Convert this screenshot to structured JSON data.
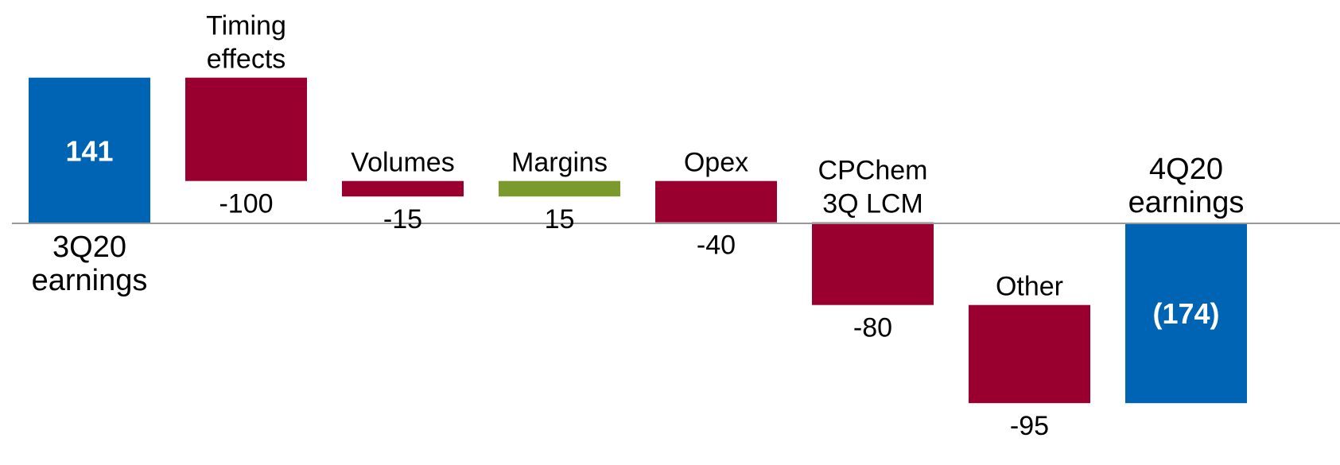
{
  "chart_data": {
    "type": "bar",
    "subtype": "waterfall",
    "title": "",
    "xlabel": "",
    "ylabel": "",
    "colors": {
      "total": "#0064b4",
      "decrease": "#990030",
      "increase": "#7a9a2e",
      "axis": "#999999"
    },
    "bars": [
      {
        "category": [
          "3Q20",
          "earnings"
        ],
        "value": 141,
        "kind": "total",
        "value_label": "141",
        "label_position": "below"
      },
      {
        "category": [
          "Timing",
          "effects"
        ],
        "value": -100,
        "kind": "decrease",
        "value_label": "-100",
        "label_position": "above"
      },
      {
        "category": [
          "Volumes"
        ],
        "value": -15,
        "kind": "decrease",
        "value_label": "-15",
        "label_position": "above"
      },
      {
        "category": [
          "Margins"
        ],
        "value": 15,
        "kind": "increase",
        "value_label": "15",
        "label_position": "above"
      },
      {
        "category": [
          "Opex"
        ],
        "value": -40,
        "kind": "decrease",
        "value_label": "-40",
        "label_position": "above"
      },
      {
        "category": [
          "CPChem",
          "3Q LCM"
        ],
        "value": -80,
        "kind": "decrease",
        "value_label": "-80",
        "label_position": "above"
      },
      {
        "category": [
          "Other"
        ],
        "value": -95,
        "kind": "decrease",
        "value_label": "-95",
        "label_position": "above"
      },
      {
        "category": [
          "4Q20",
          "earnings"
        ],
        "value": -174,
        "kind": "total",
        "value_label": "(174)",
        "label_position": "above"
      }
    ]
  }
}
